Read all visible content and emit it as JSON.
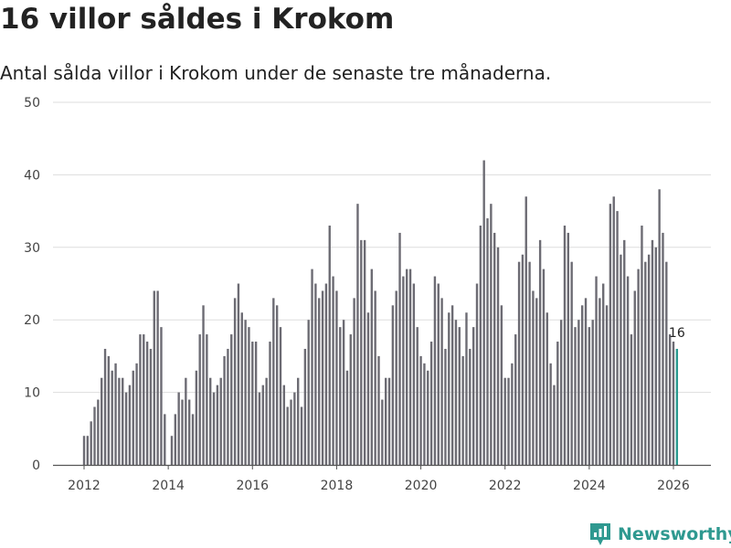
{
  "title": "16 villor såldes i Krokom",
  "subtitle": "Antal sålda villor i Krokom under de senaste tre månaderna.",
  "brand": {
    "name": "Newsworthy",
    "icon": "newsworthy-logo-icon",
    "color": "#2f9990"
  },
  "colors": {
    "bar": "#6c6b73",
    "highlight": "#2a9a8f",
    "grid": "#dddddd",
    "axis": "#555555"
  },
  "chart_data": {
    "type": "bar",
    "title": "16 villor såldes i Krokom",
    "xlabel": "",
    "ylabel": "",
    "ylim": [
      0,
      50
    ],
    "yticks": [
      0,
      10,
      20,
      30,
      40,
      50
    ],
    "xticks": [
      "2012",
      "2014",
      "2016",
      "2018",
      "2020",
      "2022",
      "2024",
      "2026"
    ],
    "x_start": "2012-01",
    "grid": true,
    "highlight_last": true,
    "last_label": "16",
    "values": [
      4,
      4,
      6,
      8,
      9,
      12,
      16,
      15,
      13,
      14,
      12,
      12,
      10,
      11,
      13,
      14,
      18,
      18,
      17,
      16,
      24,
      24,
      19,
      7,
      0,
      4,
      7,
      10,
      9,
      12,
      9,
      7,
      13,
      18,
      22,
      18,
      12,
      10,
      11,
      12,
      15,
      16,
      18,
      23,
      25,
      21,
      20,
      19,
      17,
      17,
      10,
      11,
      12,
      17,
      23,
      22,
      19,
      11,
      8,
      9,
      10,
      12,
      8,
      16,
      20,
      27,
      25,
      23,
      24,
      25,
      33,
      26,
      24,
      19,
      20,
      13,
      18,
      23,
      36,
      31,
      31,
      21,
      27,
      24,
      15,
      9,
      12,
      12,
      22,
      24,
      32,
      26,
      27,
      27,
      25,
      19,
      15,
      14,
      13,
      17,
      26,
      25,
      23,
      16,
      21,
      22,
      20,
      19,
      15,
      21,
      16,
      19,
      25,
      33,
      42,
      34,
      36,
      32,
      30,
      22,
      12,
      12,
      14,
      18,
      28,
      29,
      37,
      28,
      24,
      23,
      31,
      27,
      21,
      14,
      11,
      17,
      20,
      33,
      32,
      28,
      19,
      20,
      22,
      23,
      19,
      20,
      26,
      23,
      25,
      22,
      36,
      37,
      35,
      29,
      31,
      26,
      18,
      24,
      27,
      33,
      28,
      29,
      31,
      30,
      38,
      32,
      28,
      18,
      17,
      16
    ]
  }
}
